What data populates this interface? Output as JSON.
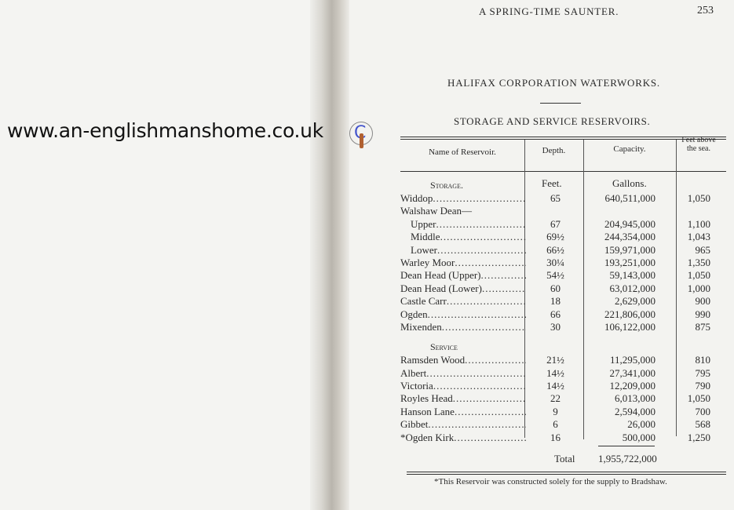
{
  "watermark": {
    "text": "www.an-englishmanshome.co.uk",
    "icon": "copyright-icon"
  },
  "running_head": "A SPRING-TIME SAUNTER.",
  "page_number": "253",
  "title": "HALIFAX CORPORATION WATERWORKS.",
  "subtitle": "STORAGE AND SERVICE RESERVOIRS.",
  "table": {
    "headers": [
      "Name of Reservoir.",
      "Depth.",
      "Capacity.",
      "Feet above the sea."
    ],
    "units": {
      "depth": "Feet.",
      "capacity": "Gallons."
    },
    "sections": [
      {
        "label": "Storage.",
        "rows": [
          {
            "name": "Widdop",
            "depth": "65",
            "capacity": "640,511,000",
            "feet": "1,050"
          },
          {
            "name": "Walshaw Dean—",
            "depth": "",
            "capacity": "",
            "feet": "",
            "group": true
          },
          {
            "name": "Upper",
            "depth": "67",
            "capacity": "204,945,000",
            "feet": "1,100",
            "indent": true
          },
          {
            "name": "Middle",
            "depth": "69½",
            "capacity": "244,354,000",
            "feet": "1,043",
            "indent": true
          },
          {
            "name": "Lower",
            "depth": "66½",
            "capacity": "159,971,000",
            "feet": "965",
            "indent": true
          },
          {
            "name": "Warley Moor",
            "depth": "30¼",
            "capacity": "193,251,000",
            "feet": "1,350"
          },
          {
            "name": "Dean Head (Upper)",
            "depth": "54½",
            "capacity": "59,143,000",
            "feet": "1,050"
          },
          {
            "name": "Dean Head (Lower)",
            "depth": "60",
            "capacity": "63,012,000",
            "feet": "1,000"
          },
          {
            "name": "Castle Carr",
            "depth": "18",
            "capacity": "2,629,000",
            "feet": "900"
          },
          {
            "name": "Ogden",
            "depth": "66",
            "capacity": "221,806,000",
            "feet": "990"
          },
          {
            "name": "Mixenden",
            "depth": "30",
            "capacity": "106,122,000",
            "feet": "875"
          }
        ]
      },
      {
        "label": "Service",
        "rows": [
          {
            "name": "Ramsden Wood",
            "depth": "21½",
            "capacity": "11,295,000",
            "feet": "810"
          },
          {
            "name": "Albert",
            "depth": "14½",
            "capacity": "27,341,000",
            "feet": "795"
          },
          {
            "name": "Victoria",
            "depth": "14½",
            "capacity": "12,209,000",
            "feet": "790"
          },
          {
            "name": "Royles Head",
            "depth": "22",
            "capacity": "6,013,000",
            "feet": "1,050"
          },
          {
            "name": "Hanson Lane",
            "depth": "9",
            "capacity": "2,594,000",
            "feet": "700"
          },
          {
            "name": "Gibbet",
            "depth": "6",
            "capacity": "26,000",
            "feet": "568"
          },
          {
            "name": "*Ogden Kirk",
            "depth": "16",
            "capacity": "500,000",
            "feet": "1,250"
          }
        ]
      }
    ],
    "total_label": "Total",
    "total_value": "1,955,722,000"
  },
  "footnote": "*This Reservoir was constructed solely for the supply to Bradshaw."
}
